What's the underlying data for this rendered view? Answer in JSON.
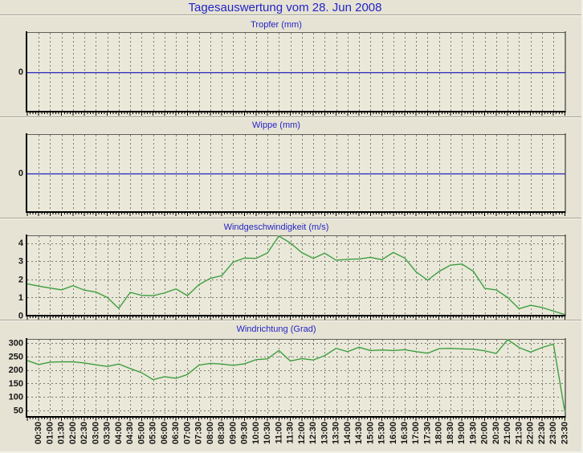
{
  "title": "Tagesauswertung vom 28. Jun 2008",
  "colors": {
    "background": "#e6e3d4",
    "plot_background": "#eae8d9",
    "title_blue": "#2424c8",
    "zero_line_blue": "#2222b8",
    "series_green": "#2d9130",
    "grid_gray": "#7d7c72",
    "axis_black": "#000000",
    "label_black": "#161616"
  },
  "x_axis": {
    "tick_labels": [
      "00:30",
      "01:00",
      "01:30",
      "02:00",
      "02:30",
      "03:00",
      "03:30",
      "04:00",
      "04:30",
      "05:00",
      "05:30",
      "06:00",
      "06:30",
      "07:00",
      "07:30",
      "08:00",
      "08:30",
      "09:00",
      "09:30",
      "10:00",
      "10:30",
      "11:00",
      "11:30",
      "12:00",
      "12:30",
      "13:00",
      "13:30",
      "14:00",
      "14:30",
      "15:00",
      "15:30",
      "16:00",
      "16:30",
      "17:00",
      "17:30",
      "18:00",
      "18:30",
      "19:00",
      "19:30",
      "20:00",
      "20:30",
      "21:00",
      "21:30",
      "22:00",
      "22:30",
      "23:00",
      "23:30"
    ]
  },
  "chart_data": [
    {
      "type": "line",
      "title": "Tropfer (mm)",
      "x_start": "00:00",
      "x_step_minutes": 30,
      "values": [
        0,
        0,
        0,
        0,
        0,
        0,
        0,
        0,
        0,
        0,
        0,
        0,
        0,
        0,
        0,
        0,
        0,
        0,
        0,
        0,
        0,
        0,
        0,
        0,
        0,
        0,
        0,
        0,
        0,
        0,
        0,
        0,
        0,
        0,
        0,
        0,
        0,
        0,
        0,
        0,
        0,
        0,
        0,
        0,
        0,
        0,
        0,
        0
      ],
      "yticks": [
        0
      ],
      "ylim": [
        -1,
        1
      ],
      "line_color_role": "zero_line_blue",
      "grid": true,
      "legend": false
    },
    {
      "type": "line",
      "title": "Wippe (mm)",
      "x_start": "00:00",
      "x_step_minutes": 30,
      "values": [
        0,
        0,
        0,
        0,
        0,
        0,
        0,
        0,
        0,
        0,
        0,
        0,
        0,
        0,
        0,
        0,
        0,
        0,
        0,
        0,
        0,
        0,
        0,
        0,
        0,
        0,
        0,
        0,
        0,
        0,
        0,
        0,
        0,
        0,
        0,
        0,
        0,
        0,
        0,
        0,
        0,
        0,
        0,
        0,
        0,
        0,
        0,
        0
      ],
      "yticks": [
        0
      ],
      "ylim": [
        -1,
        1
      ],
      "line_color_role": "zero_line_blue",
      "grid": true,
      "legend": false
    },
    {
      "type": "line",
      "title": "Windgeschwindigkeit (m/s)",
      "x_start": "00:00",
      "x_step_minutes": 30,
      "values": [
        1.75,
        1.62,
        1.52,
        1.42,
        1.65,
        1.4,
        1.3,
        1.0,
        0.4,
        1.28,
        1.12,
        1.1,
        1.25,
        1.47,
        1.1,
        1.7,
        2.05,
        2.2,
        2.95,
        3.17,
        3.15,
        3.45,
        4.38,
        4.0,
        3.47,
        3.15,
        3.44,
        3.05,
        3.1,
        3.12,
        3.21,
        3.08,
        3.48,
        3.17,
        2.41,
        1.95,
        2.43,
        2.78,
        2.84,
        2.44,
        1.5,
        1.42,
        1.0,
        0.38,
        0.57,
        0.45,
        0.25,
        0.06
      ],
      "yticks": [
        0,
        1,
        2,
        3,
        4
      ],
      "ylim": [
        0,
        4.42
      ],
      "line_color_role": "series_green",
      "grid": true,
      "legend": false
    },
    {
      "type": "line",
      "title": "Windrichtung (Grad)",
      "x_start": "00:00",
      "x_step_minutes": 30,
      "values": [
        235,
        220,
        229,
        230,
        230,
        226,
        219,
        213,
        222,
        205,
        190,
        164,
        175,
        169,
        183,
        218,
        224,
        222,
        217,
        223,
        238,
        241,
        272,
        233,
        242,
        237,
        253,
        280,
        268,
        284,
        272,
        274,
        272,
        275,
        268,
        262,
        279,
        280,
        278,
        277,
        271,
        261,
        313,
        283,
        266,
        283,
        296,
        45
      ],
      "yticks": [
        50,
        100,
        150,
        200,
        250,
        300
      ],
      "ylim": [
        26,
        315
      ],
      "line_color_role": "series_green",
      "grid": true,
      "legend": false
    }
  ]
}
